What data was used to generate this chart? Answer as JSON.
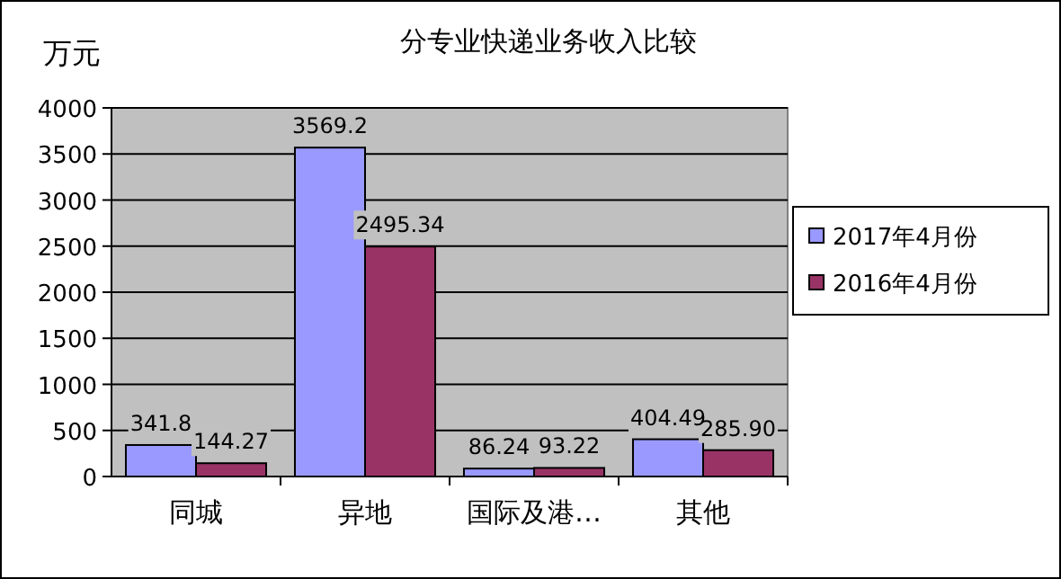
{
  "chart_data": {
    "type": "bar",
    "title": "分专业快递业务收入比较",
    "ylabel": "万元",
    "categories": [
      "同城",
      "异地",
      "国际及港…",
      "其他"
    ],
    "series": [
      {
        "name": "2017年4月份",
        "color": "#9999ff",
        "values": [
          341.8,
          3569.2,
          86.24,
          404.49
        ],
        "value_labels": [
          "341.8",
          "3569.2",
          "86.24",
          "404.49"
        ]
      },
      {
        "name": "2016年4月份",
        "color": "#993366",
        "values": [
          144.27,
          2495.34,
          93.22,
          285.9
        ],
        "value_labels": [
          "144.27",
          "2495.34",
          "93.22",
          "285.90"
        ]
      }
    ],
    "ylim": [
      0,
      4000
    ],
    "yticks": [
      0,
      500,
      1000,
      1500,
      2000,
      2500,
      3000,
      3500,
      4000
    ],
    "grid": "y",
    "legend": "right"
  }
}
